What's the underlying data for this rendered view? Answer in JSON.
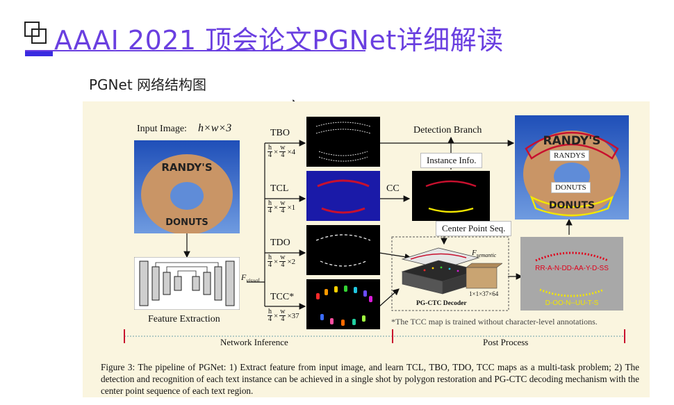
{
  "slide": {
    "title": "AAAI 2021 顶会论文PGNet详细解读",
    "subtitle": "PGNet 网络结构图"
  },
  "figure": {
    "input_label": "Input Image:",
    "input_dims": "h×w×3",
    "feature_extraction": "Feature Extraction",
    "f_visual": "F",
    "f_visual_sub": "visual",
    "branches": [
      {
        "name": "TBO",
        "channels": "×4"
      },
      {
        "name": "TCL",
        "channels": "×1"
      },
      {
        "name": "TDO",
        "channels": "×2"
      },
      {
        "name": "TCC*",
        "channels": "×37"
      }
    ],
    "frac_h": "h",
    "frac_w": "w",
    "frac_den": "4",
    "cc_label": "CC",
    "detection_branch": "Detection Branch",
    "instance_info": "Instance Info.",
    "center_point_seq": "Center Point Seq.",
    "f_semantic": "F",
    "f_semantic_sub": "semantic",
    "semantic_dims": "1×1×37×64",
    "pgctc_decoder": "PG-CTC Decoder",
    "recog_top": "RR-A-N-DD-AA-Y-D-SS",
    "recog_bottom": "D-OO-N--UU-T-S",
    "result_word_1": "RANDYS",
    "result_word_2": "DONUTS",
    "donut_top_text": "RANDY'S",
    "donut_bottom_text": "DONUTS",
    "tcc_note": "*The TCC map is trained without character-level annotations.",
    "network_inference": "Network Inference",
    "post_process": "Post Process",
    "caption": "Figure 3: The pipeline of PGNet: 1) Extract feature from input image, and learn TCL, TBO, TDO, TCC maps as a multi-task problem; 2) The detection and recognition of each text instance can be achieved in a single shot by polygon restoration and PG-CTC decoding mechanism with the center point sequence of each text region."
  },
  "colors": {
    "title": "#6a3fe0",
    "figure_bg": "#faf5df",
    "tcl_map": "#1a1aa8",
    "curve_red": "#c8102e",
    "curve_yellow": "#f2e600",
    "recog_red": "#e0001a",
    "recog_yellow": "#f2e600"
  }
}
